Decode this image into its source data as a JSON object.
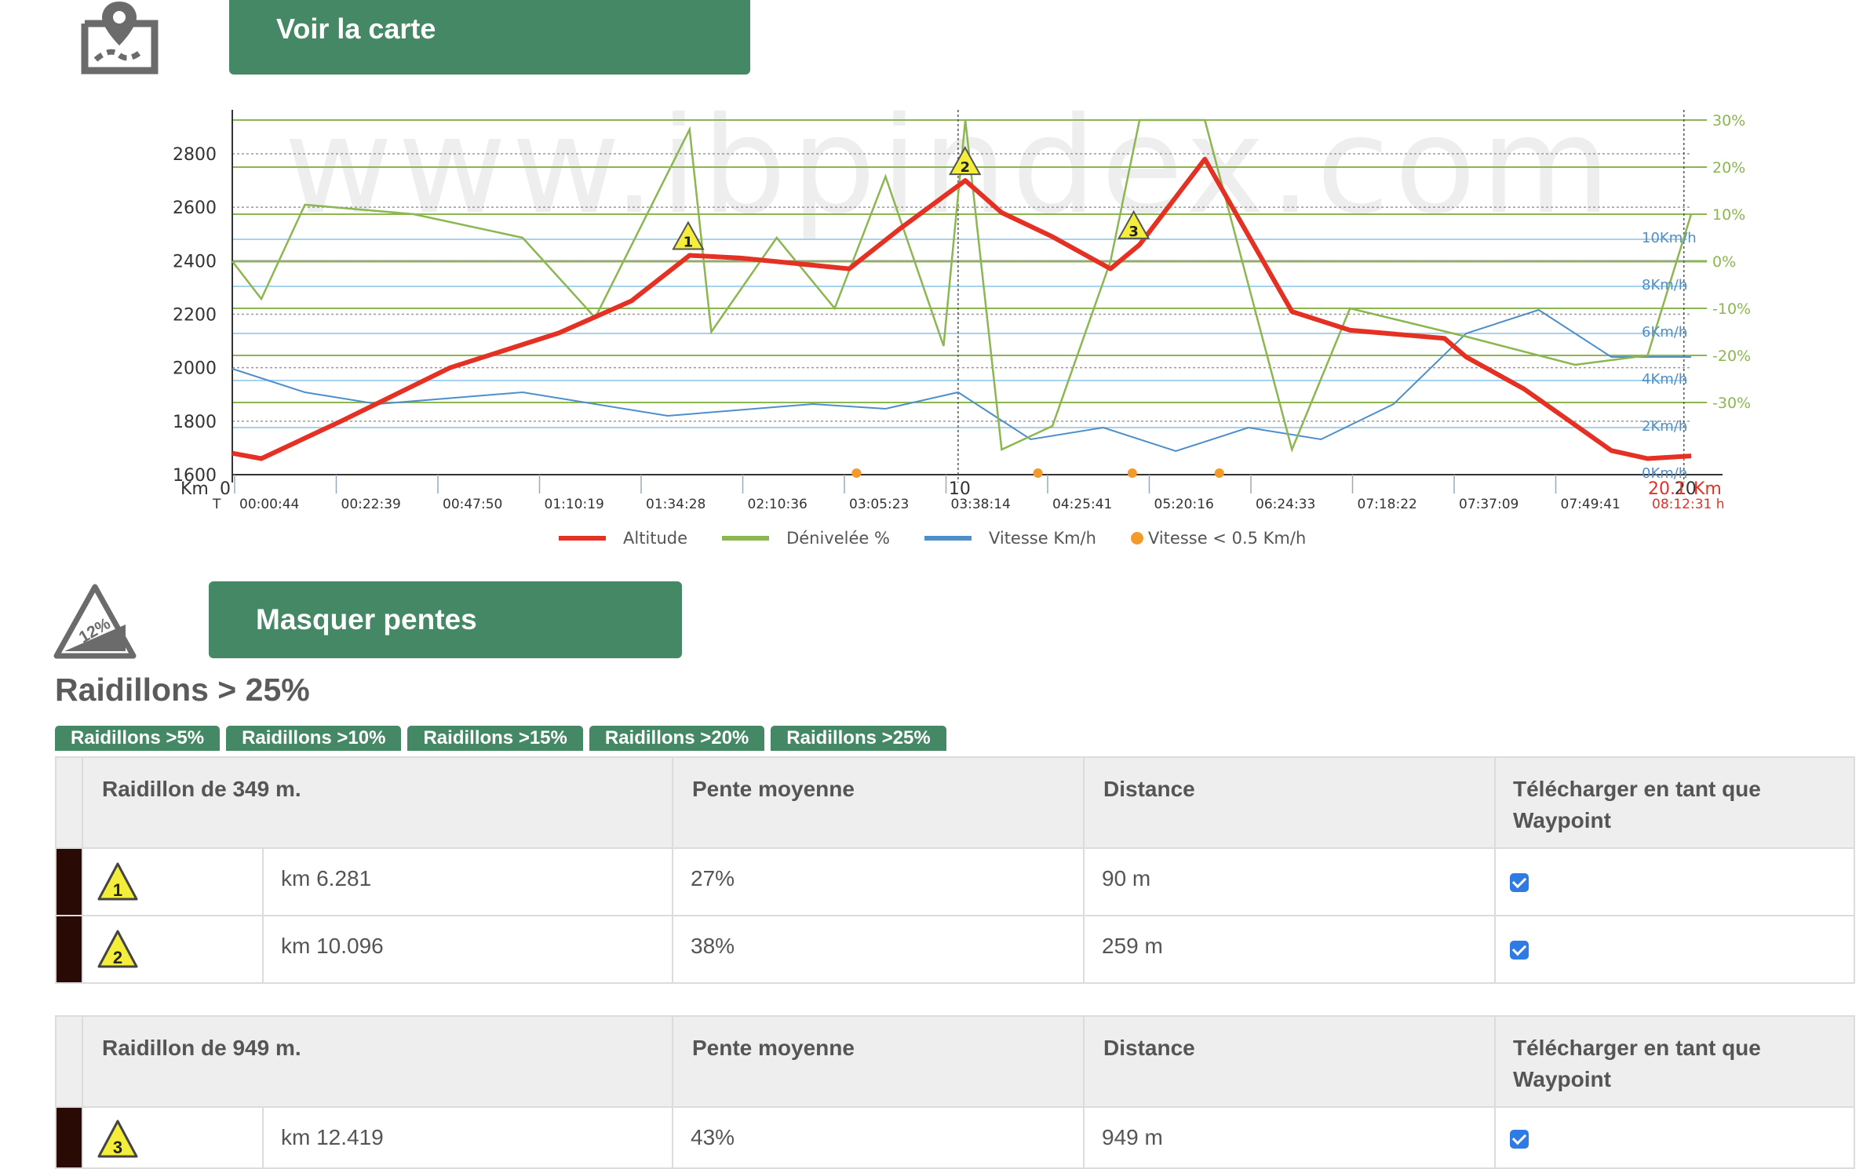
{
  "header": {
    "map_button": "Voir la carte",
    "map_icon": "map-pin-icon",
    "slopes_button": "Masquer pentes",
    "slope_icon": "slope-12-percent-icon",
    "slope_icon_text": "12%"
  },
  "chart": {
    "watermark": "www.ibpindex.com",
    "km_label": "Km",
    "t_label": "T",
    "km_end_label": "Km",
    "end_time": "08:12:31 h",
    "altitude_ticks": [
      "2800",
      "2600",
      "2400",
      "2200",
      "2000",
      "1800",
      "1600"
    ],
    "grade_ticks": [
      "30%",
      "20%",
      "10%",
      "0%",
      "-10%",
      "-20%",
      "-30%"
    ],
    "speed_ticks": [
      "10Km/h",
      "8Km/h",
      "6Km/h",
      "4Km/h",
      "2Km/h",
      "0Km/h"
    ],
    "km_ticks": [
      "0",
      "10",
      "20"
    ],
    "end_km": "20.1",
    "time_ticks": [
      "00:00:44",
      "00:22:39",
      "00:47:50",
      "01:10:19",
      "01:34:28",
      "02:10:36",
      "03:05:23",
      "03:38:14",
      "04:25:41",
      "05:20:16",
      "06:24:33",
      "07:18:22",
      "07:37:09",
      "07:49:41"
    ],
    "markers": [
      "1",
      "2",
      "3"
    ],
    "colors": {
      "altitude": "#e53024",
      "grade": "#8bb650",
      "speed": "#4e8fc9",
      "stop": "#f39a2a"
    }
  },
  "legend": {
    "altitude": "Altitude",
    "grade": "Dénivelée %",
    "speed": "Vitesse Km/h",
    "stop": "Vitesse < 0.5 Km/h"
  },
  "chart_data": {
    "type": "line",
    "xlabel": "Km",
    "ylabel": "",
    "xlim": [
      0,
      20.1
    ],
    "ylim": [
      1600,
      2900
    ],
    "series": [
      {
        "name": "Altitude",
        "x": [
          0,
          0.4,
          1.5,
          3,
          4.5,
          5.5,
          6.3,
          7,
          8.5,
          9.2,
          10.1,
          10.6,
          11.3,
          12.1,
          12.5,
          13.4,
          14.6,
          15.4,
          16.7,
          17,
          17.8,
          19,
          19.5,
          20.1
        ],
        "y": [
          1680,
          1660,
          1800,
          2000,
          2130,
          2250,
          2420,
          2410,
          2370,
          2520,
          2700,
          2580,
          2490,
          2370,
          2460,
          2780,
          2210,
          2140,
          2110,
          2040,
          1920,
          1690,
          1660,
          1670
        ]
      },
      {
        "name": "Dénivelée %",
        "x": [
          0,
          0.4,
          1,
          2.5,
          4,
          5,
          6.3,
          6.6,
          7.5,
          8.3,
          9,
          9.8,
          10.1,
          10.6,
          11.3,
          12.1,
          12.5,
          13.4,
          14.6,
          15.4,
          17,
          18.5,
          19.5,
          20.1
        ],
        "y": [
          0,
          -8,
          12,
          10,
          5,
          -12,
          28,
          -15,
          5,
          -10,
          18,
          -18,
          30,
          -40,
          -35,
          0,
          30,
          30,
          -40,
          -10,
          -16,
          -22,
          -20,
          10
        ]
      },
      {
        "name": "Vitesse Km/h",
        "x": [
          0,
          1,
          2,
          4,
          5,
          6,
          8,
          9,
          10,
          11,
          12,
          13,
          14,
          15,
          16,
          17,
          18,
          19,
          20.1
        ],
        "y": [
          4.5,
          3.5,
          3,
          3.5,
          3,
          2.5,
          3,
          2.8,
          3.5,
          1.5,
          2,
          1,
          2,
          1.5,
          3,
          6,
          7,
          5,
          5
        ]
      },
      {
        "name": "Vitesse < 0.5 Km/h",
        "x": [
          8.6,
          11.1,
          12.4,
          13.6
        ],
        "y": [
          0,
          0,
          0,
          0
        ]
      }
    ]
  },
  "section": {
    "title": "Raidillons > 25%",
    "tabs": [
      "Raidillons >5%",
      "Raidillons >10%",
      "Raidillons >15%",
      "Raidillons >20%",
      "Raidillons >25%"
    ]
  },
  "tables": [
    {
      "header": [
        "Raidillon de 349 m.",
        "Pente moyenne",
        "Distance",
        "Télécharger en tant que Waypoint"
      ],
      "rows": [
        {
          "marker": "1",
          "km": "km 6.281",
          "slope": "27%",
          "distance": "90 m",
          "checked": true
        },
        {
          "marker": "2",
          "km": "km 10.096",
          "slope": "38%",
          "distance": "259 m",
          "checked": true
        }
      ]
    },
    {
      "header": [
        "Raidillon de 949 m.",
        "Pente moyenne",
        "Distance",
        "Télécharger en tant que Waypoint"
      ],
      "rows": [
        {
          "marker": "3",
          "km": "km 12.419",
          "slope": "43%",
          "distance": "949 m",
          "checked": true
        }
      ]
    }
  ]
}
